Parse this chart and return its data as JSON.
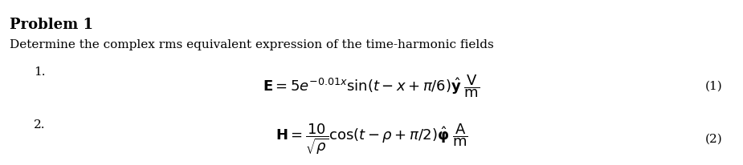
{
  "title": "Problem 1",
  "subtitle": "Determine the complex rms equivalent expression of the time-harmonic fields",
  "label1": "1.",
  "label2": "2.",
  "eq1": "$\\mathbf{E} = 5e^{-0.01x}\\sin(t - x + \\pi/6)\\hat{\\mathbf{y}}\\;\\dfrac{\\mathrm{V}}{\\mathrm{m}}$",
  "eq1_num": "(1)",
  "eq2": "$\\mathbf{H} = \\dfrac{10}{\\sqrt{\\rho}}\\cos(t - \\rho + \\pi/2)\\hat{\\boldsymbol{\\varphi}}\\;\\dfrac{\\mathrm{A}}{\\mathrm{m}}$",
  "eq2_num": "(2)",
  "bg_color": "#ffffff",
  "text_color": "#000000",
  "title_fontsize": 13,
  "body_fontsize": 11,
  "eq_fontsize": 13
}
